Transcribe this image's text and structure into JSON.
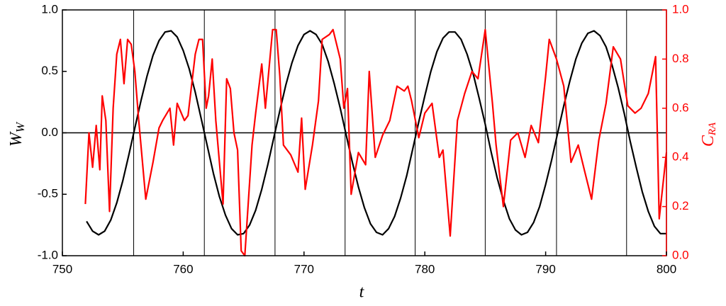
{
  "chart_data": {
    "type": "line",
    "xlabel": "t",
    "ylabel": {
      "main": "W",
      "sub": "W"
    },
    "y2label": {
      "main": "C",
      "sub": "RA"
    },
    "xlim": [
      750,
      800
    ],
    "xticks": [
      750,
      760,
      770,
      780,
      790,
      800
    ],
    "ylim": [
      -1,
      1
    ],
    "yticks": [
      {
        "value": -1,
        "label": "-1.0"
      },
      {
        "value": -0.5,
        "label": "-0.5"
      },
      {
        "value": 0,
        "label": "0.0"
      },
      {
        "value": 0.5,
        "label": "0.5"
      },
      {
        "value": 1,
        "label": "1.0"
      }
    ],
    "y2lim": [
      0,
      1
    ],
    "y2ticks": [
      {
        "value": 0,
        "label": "0.0"
      },
      {
        "value": 0.2,
        "label": "0.2"
      },
      {
        "value": 0.4,
        "label": "0.4"
      },
      {
        "value": 0.6,
        "label": "0.6"
      },
      {
        "value": 0.8,
        "label": "0.8"
      },
      {
        "value": 1,
        "label": "1.0"
      }
    ],
    "y2color": "#ff0000",
    "hline": 0,
    "vlines": [
      755.9,
      761.75,
      767.6,
      773.4,
      779.2,
      785.0,
      790.9,
      796.7
    ],
    "series": [
      {
        "color": "#000000",
        "axis": "y",
        "x": [
          752,
          752.5,
          753,
          753.5,
          754,
          754.5,
          755,
          755.5,
          756,
          756.5,
          757,
          757.5,
          758,
          758.5,
          759,
          759.5,
          760,
          760.5,
          761,
          761.5,
          762,
          762.5,
          763,
          763.5,
          764,
          764.5,
          765,
          765.5,
          766,
          766.5,
          767,
          767.5,
          768,
          768.5,
          769,
          769.5,
          770,
          770.5,
          771,
          771.5,
          772,
          772.5,
          773,
          773.5,
          774,
          774.5,
          775,
          775.5,
          776,
          776.5,
          777,
          777.5,
          778,
          778.5,
          779,
          779.5,
          780,
          780.5,
          781,
          781.5,
          782,
          782.5,
          783,
          783.5,
          784,
          784.5,
          785,
          785.5,
          786,
          786.5,
          787,
          787.5,
          788,
          788.5,
          789,
          789.5,
          790,
          790.5,
          791,
          791.5,
          792,
          792.5,
          793,
          793.5,
          794,
          794.5,
          795,
          795.5,
          796,
          796.5,
          797,
          797.5,
          798,
          798.5,
          799,
          799.5,
          800
        ],
        "values": [
          -0.72,
          -0.8,
          -0.83,
          -0.8,
          -0.71,
          -0.57,
          -0.39,
          -0.18,
          0.04,
          0.26,
          0.46,
          0.63,
          0.75,
          0.82,
          0.83,
          0.78,
          0.67,
          0.52,
          0.33,
          0.11,
          -0.11,
          -0.33,
          -0.52,
          -0.67,
          -0.78,
          -0.83,
          -0.82,
          -0.75,
          -0.63,
          -0.46,
          -0.26,
          -0.04,
          0.18,
          0.39,
          0.57,
          0.71,
          0.8,
          0.83,
          0.8,
          0.72,
          0.58,
          0.4,
          0.2,
          -0.02,
          -0.24,
          -0.44,
          -0.61,
          -0.74,
          -0.81,
          -0.83,
          -0.78,
          -0.68,
          -0.53,
          -0.35,
          -0.13,
          0.09,
          0.3,
          0.5,
          0.66,
          0.77,
          0.82,
          0.82,
          0.76,
          0.64,
          0.48,
          0.28,
          0.07,
          -0.16,
          -0.37,
          -0.55,
          -0.7,
          -0.79,
          -0.83,
          -0.81,
          -0.73,
          -0.6,
          -0.42,
          -0.22,
          0.0,
          0.22,
          0.42,
          0.6,
          0.73,
          0.81,
          0.83,
          0.79,
          0.7,
          0.55,
          0.37,
          0.16,
          -0.07,
          -0.28,
          -0.48,
          -0.64,
          -0.76,
          -0.82,
          -0.82
        ]
      },
      {
        "color": "#ff0000",
        "axis": "y2",
        "x": [
          751.9,
          752.2,
          752.5,
          752.8,
          753.1,
          753.3,
          753.6,
          753.9,
          754.2,
          754.5,
          754.8,
          755.1,
          755.4,
          755.7,
          756.0,
          756.3,
          756.9,
          757.5,
          758.0,
          758.3,
          758.9,
          759.2,
          759.5,
          760.1,
          760.4,
          761.0,
          761.3,
          761.6,
          761.9,
          762.1,
          762.4,
          762.7,
          763.3,
          763.6,
          763.9,
          764.2,
          764.5,
          764.8,
          765.1,
          765.7,
          766.0,
          766.5,
          766.8,
          767.4,
          767.7,
          768.0,
          768.3,
          768.9,
          769.5,
          769.8,
          770.1,
          770.7,
          771.2,
          771.5,
          772.1,
          772.4,
          773.0,
          773.3,
          773.6,
          773.9,
          774.5,
          775.1,
          775.4,
          775.9,
          776.5,
          777.1,
          777.7,
          778.3,
          778.6,
          778.9,
          779.5,
          780.0,
          780.6,
          781.2,
          781.5,
          782.1,
          782.7,
          783.3,
          783.9,
          784.4,
          785.0,
          785.6,
          785.9,
          786.5,
          787.1,
          787.7,
          788.3,
          788.8,
          789.4,
          790.0,
          790.3,
          790.9,
          791.5,
          792.1,
          792.7,
          793.2,
          793.8,
          794.4,
          795.0,
          795.6,
          796.2,
          796.8,
          797.4,
          797.9,
          798.5,
          799.1,
          799.4,
          800.0
        ],
        "values": [
          0.21,
          0.5,
          0.36,
          0.53,
          0.35,
          0.65,
          0.55,
          0.18,
          0.6,
          0.82,
          0.88,
          0.7,
          0.88,
          0.86,
          0.75,
          0.56,
          0.23,
          0.38,
          0.52,
          0.55,
          0.6,
          0.45,
          0.62,
          0.55,
          0.57,
          0.82,
          0.88,
          0.88,
          0.6,
          0.65,
          0.8,
          0.55,
          0.21,
          0.72,
          0.68,
          0.5,
          0.43,
          0.02,
          0.0,
          0.45,
          0.58,
          0.78,
          0.6,
          0.92,
          0.92,
          0.73,
          0.45,
          0.41,
          0.34,
          0.56,
          0.27,
          0.45,
          0.63,
          0.88,
          0.9,
          0.92,
          0.8,
          0.6,
          0.68,
          0.25,
          0.42,
          0.37,
          0.75,
          0.4,
          0.49,
          0.55,
          0.69,
          0.67,
          0.69,
          0.63,
          0.48,
          0.58,
          0.62,
          0.4,
          0.43,
          0.08,
          0.55,
          0.66,
          0.75,
          0.72,
          0.92,
          0.62,
          0.45,
          0.2,
          0.47,
          0.5,
          0.4,
          0.53,
          0.46,
          0.73,
          0.88,
          0.8,
          0.69,
          0.38,
          0.45,
          0.35,
          0.23,
          0.47,
          0.62,
          0.85,
          0.8,
          0.61,
          0.58,
          0.6,
          0.66,
          0.81,
          0.15,
          0.42
        ]
      }
    ]
  }
}
